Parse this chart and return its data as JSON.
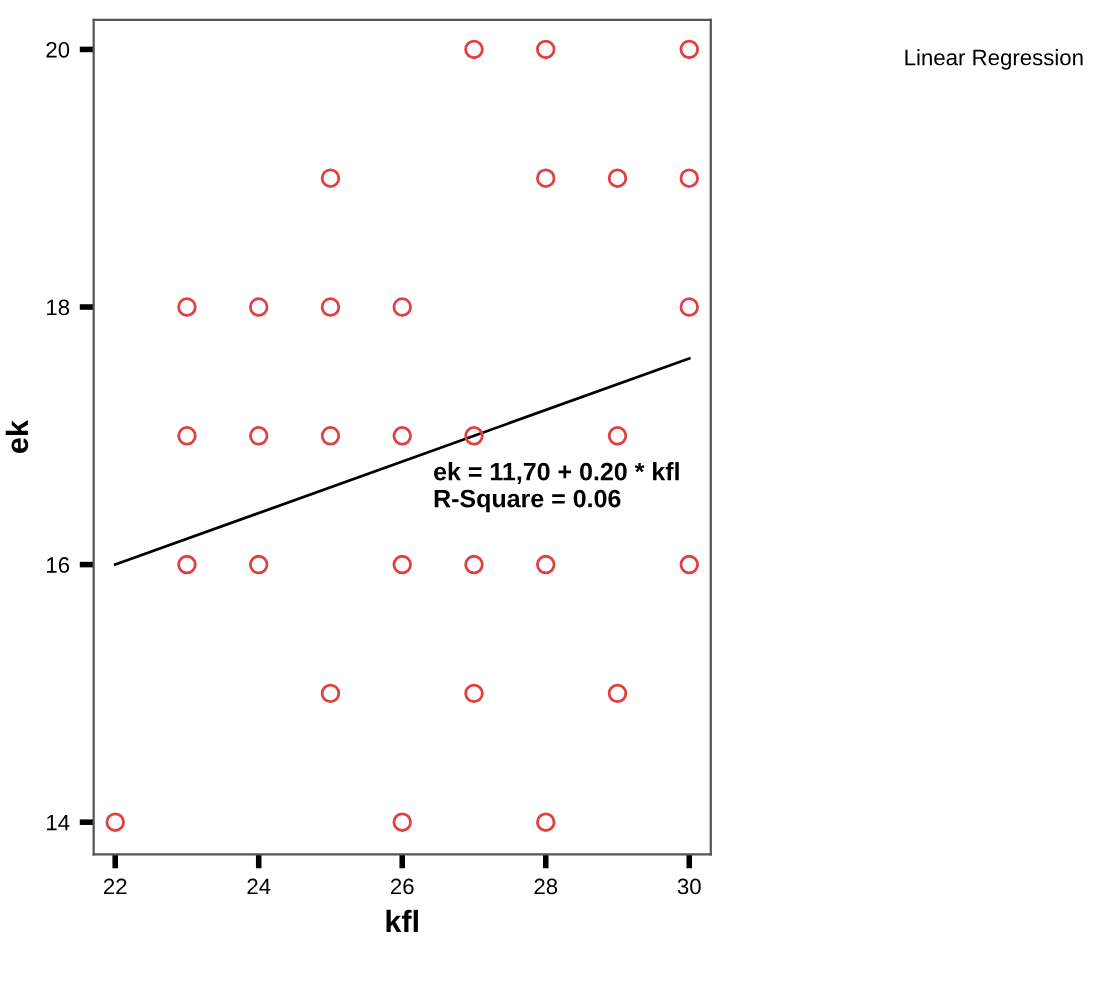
{
  "chart_data": {
    "type": "scatter",
    "xlabel": "kfl",
    "ylabel": "ek",
    "xlim": [
      21.7,
      30.3
    ],
    "ylim": [
      13.75,
      20.23
    ],
    "xticks": [
      22,
      24,
      26,
      28,
      30
    ],
    "yticks": [
      14,
      16,
      18,
      20
    ],
    "grid": false,
    "marker": "circle",
    "annotations": [
      "ek = 11,70 + 0.20 * kfl\nR-Square = 0.06",
      "Linear Regression"
    ],
    "series": [
      {
        "color": "#e04040",
        "x": [
          22,
          23,
          23,
          23,
          24,
          24,
          24,
          25,
          25,
          25,
          25,
          26,
          26,
          26,
          26,
          27,
          27,
          27,
          27,
          28,
          28,
          28,
          28,
          29,
          29,
          29,
          30,
          30,
          30,
          30
        ],
        "values": [
          14,
          18,
          17,
          16,
          18,
          17,
          16,
          19,
          18,
          17,
          15,
          18,
          17,
          16,
          14,
          20,
          17,
          16,
          15,
          20,
          19,
          16,
          14,
          19,
          17,
          15,
          20,
          19,
          18,
          16
        ]
      },
      {
        "type": "line",
        "color": "#000000",
        "marker": "none",
        "x": [
          22,
          30
        ],
        "values": [
          16.0,
          17.6
        ]
      }
    ]
  }
}
